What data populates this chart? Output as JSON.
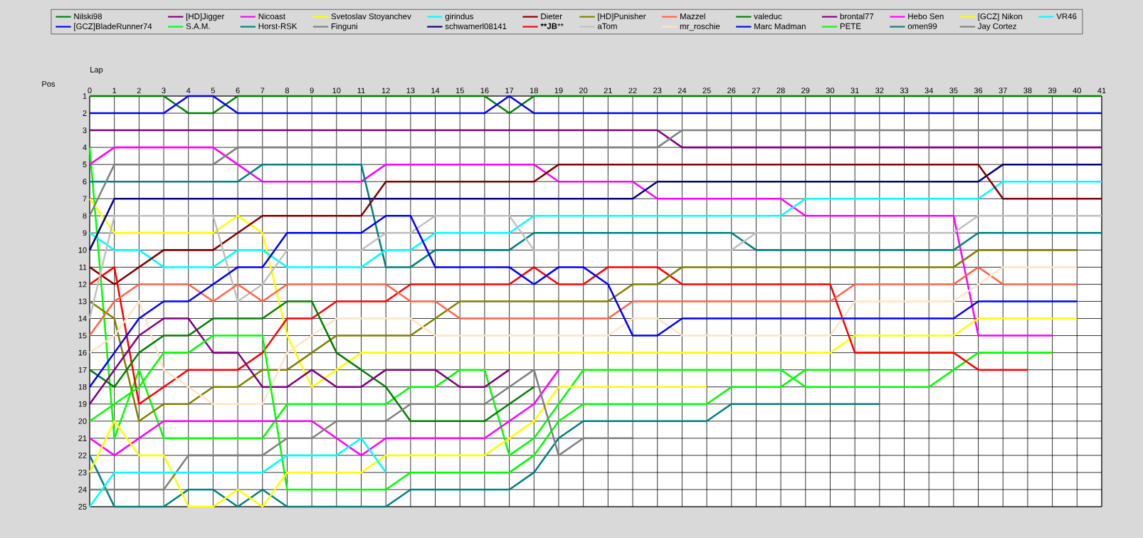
{
  "chart_data": {
    "type": "line",
    "xlabel": "Lap",
    "ylabel": "Pos",
    "x": [
      0,
      1,
      2,
      3,
      4,
      5,
      6,
      7,
      8,
      9,
      10,
      11,
      12,
      13,
      14,
      15,
      16,
      17,
      18,
      19,
      20,
      21,
      22,
      23,
      24,
      25,
      26,
      27,
      28,
      29,
      30,
      31,
      32,
      33,
      34,
      35,
      36,
      37,
      38,
      39,
      40,
      41
    ],
    "xlim": [
      0,
      41
    ],
    "ylim": [
      25,
      1
    ],
    "xticks": [
      0,
      1,
      2,
      3,
      4,
      5,
      6,
      7,
      8,
      9,
      10,
      11,
      12,
      13,
      14,
      15,
      16,
      17,
      18,
      19,
      20,
      21,
      22,
      23,
      24,
      25,
      26,
      27,
      28,
      29,
      30,
      31,
      32,
      33,
      34,
      35,
      36,
      37,
      38,
      39,
      40,
      41
    ],
    "yticks": [
      1,
      2,
      3,
      4,
      5,
      6,
      7,
      8,
      9,
      10,
      11,
      12,
      13,
      14,
      15,
      16,
      17,
      18,
      19,
      20,
      21,
      22,
      23,
      24,
      25
    ],
    "grid": true,
    "legend": "top",
    "marker": "none",
    "series": [
      {
        "name": "Nilski98",
        "color": "#008000",
        "values": [
          1,
          1,
          1,
          1,
          2,
          2,
          1,
          1,
          1,
          1,
          1,
          1,
          1,
          1,
          1,
          1,
          1,
          2,
          1,
          1,
          1,
          1,
          1,
          1,
          1,
          1,
          1,
          1,
          1,
          1,
          1,
          1,
          1,
          1,
          1,
          1,
          1,
          1,
          1,
          1,
          1,
          1
        ]
      },
      {
        "name": "[GCZ]BladeRunner74",
        "color": "#0000ff",
        "values": [
          2,
          2,
          2,
          2,
          1,
          1,
          2,
          2,
          2,
          2,
          2,
          2,
          2,
          2,
          2,
          2,
          2,
          1,
          2,
          2,
          2,
          2,
          2,
          2,
          2,
          2,
          2,
          2,
          2,
          2,
          2,
          2,
          2,
          2,
          2,
          2,
          2,
          2,
          2,
          2,
          2,
          2
        ]
      },
      {
        "name": "[HD]Jigger",
        "color": "#800080",
        "values": [
          3,
          3,
          3,
          3,
          3,
          3,
          3,
          3,
          3,
          3,
          3,
          3,
          3,
          3,
          3,
          3,
          3,
          3,
          3,
          3,
          3,
          3,
          3,
          3,
          4,
          4,
          4,
          4,
          4,
          4,
          4,
          4,
          4,
          4,
          4,
          4,
          4,
          4,
          4,
          4,
          4,
          4
        ]
      },
      {
        "name": "S.A.M.",
        "color": "#00ff00",
        "values": [
          4,
          21,
          17,
          21,
          21,
          21,
          21,
          21,
          19,
          19,
          19,
          19,
          19,
          18,
          18,
          17,
          17,
          22,
          21,
          19,
          17,
          17,
          17,
          17,
          17,
          17,
          17,
          17,
          17,
          18,
          18,
          18,
          18,
          18,
          18,
          17,
          16,
          16,
          16,
          16,
          null,
          null
        ]
      },
      {
        "name": "Nicoast",
        "color": "#ff00ff",
        "values": [
          5,
          4,
          4,
          4,
          4,
          4,
          5,
          6,
          6,
          6,
          6,
          6,
          5,
          5,
          5,
          5,
          5,
          5,
          5,
          6,
          6,
          6,
          6,
          7,
          7,
          7,
          7,
          7,
          7,
          8,
          8,
          8,
          8,
          8,
          8,
          8,
          15,
          15,
          15,
          15,
          null,
          null
        ]
      },
      {
        "name": "Horst-RSK",
        "color": "#008080",
        "values": [
          6,
          6,
          6,
          6,
          6,
          6,
          6,
          5,
          5,
          5,
          5,
          5,
          11,
          11,
          10,
          10,
          10,
          10,
          9,
          9,
          9,
          9,
          9,
          9,
          9,
          9,
          9,
          10,
          10,
          10,
          10,
          10,
          10,
          10,
          10,
          10,
          9,
          9,
          9,
          9,
          9,
          9
        ]
      },
      {
        "name": "Svetoslav Stoyanchev",
        "color": "#ffff00",
        "values": [
          7,
          9,
          9,
          9,
          9,
          9,
          8,
          9,
          15,
          18,
          17,
          16,
          16,
          16,
          16,
          16,
          16,
          16,
          16,
          16,
          16,
          16,
          16,
          16,
          16,
          16,
          16,
          16,
          16,
          16,
          16,
          15,
          15,
          15,
          15,
          15,
          14,
          14,
          14,
          14,
          14,
          null
        ]
      },
      {
        "name": "Finguni",
        "color": "#808080",
        "values": [
          8,
          5,
          5,
          5,
          5,
          5,
          4,
          4,
          4,
          4,
          4,
          4,
          4,
          4,
          4,
          4,
          4,
          4,
          4,
          4,
          4,
          4,
          4,
          4,
          3,
          3,
          3,
          3,
          3,
          3,
          3,
          3,
          3,
          3,
          3,
          3,
          3,
          3,
          3,
          3,
          3,
          3
        ]
      },
      {
        "name": "girindus",
        "color": "#00ffff",
        "values": [
          9,
          10,
          10,
          11,
          11,
          11,
          10,
          10,
          11,
          11,
          11,
          11,
          10,
          10,
          9,
          9,
          9,
          9,
          8,
          8,
          8,
          8,
          8,
          8,
          8,
          8,
          8,
          8,
          8,
          7,
          7,
          7,
          7,
          7,
          7,
          7,
          7,
          6,
          6,
          6,
          6,
          6
        ]
      },
      {
        "name": "schwamerl08141",
        "color": "#000080",
        "values": [
          10,
          7,
          7,
          7,
          7,
          7,
          7,
          7,
          7,
          7,
          7,
          7,
          7,
          7,
          7,
          7,
          7,
          7,
          7,
          7,
          7,
          7,
          7,
          6,
          6,
          6,
          6,
          6,
          6,
          6,
          6,
          6,
          6,
          6,
          6,
          6,
          6,
          5,
          5,
          5,
          5,
          5
        ]
      },
      {
        "name": "Dieter",
        "color": "#800000",
        "values": [
          11,
          12,
          11,
          10,
          10,
          10,
          9,
          8,
          8,
          8,
          8,
          8,
          6,
          6,
          6,
          6,
          6,
          6,
          6,
          5,
          5,
          5,
          5,
          5,
          5,
          5,
          5,
          5,
          5,
          5,
          5,
          5,
          5,
          5,
          5,
          5,
          5,
          7,
          7,
          7,
          7,
          7
        ]
      },
      {
        "name": "****JB****",
        "color": "#ff0000",
        "values": [
          12,
          11,
          19,
          18,
          17,
          17,
          17,
          16,
          14,
          14,
          13,
          13,
          13,
          12,
          12,
          12,
          12,
          12,
          11,
          12,
          12,
          11,
          11,
          11,
          12,
          12,
          12,
          12,
          12,
          12,
          12,
          16,
          16,
          16,
          16,
          16,
          17,
          17,
          17,
          null,
          null,
          null
        ]
      },
      {
        "name": "[HD]Punisher",
        "color": "#808000",
        "values": [
          13,
          14,
          20,
          19,
          19,
          18,
          18,
          17,
          17,
          16,
          15,
          15,
          15,
          15,
          14,
          13,
          13,
          13,
          13,
          13,
          13,
          13,
          12,
          12,
          11,
          11,
          11,
          11,
          11,
          11,
          11,
          11,
          11,
          11,
          11,
          11,
          10,
          10,
          10,
          10,
          10,
          null
        ]
      },
      {
        "name": "aTom",
        "color": "#c0c0c0",
        "values": [
          14,
          8,
          8,
          8,
          8,
          8,
          13,
          12,
          10,
          10,
          10,
          10,
          9,
          9,
          8,
          8,
          8,
          8,
          10,
          10,
          10,
          10,
          10,
          10,
          10,
          10,
          10,
          9,
          9,
          9,
          9,
          9,
          9,
          9,
          9,
          9,
          8,
          8,
          8,
          8,
          8,
          8
        ]
      },
      {
        "name": "Mazzel",
        "color": "#ff6347",
        "values": [
          15,
          13,
          12,
          12,
          12,
          13,
          12,
          13,
          12,
          12,
          12,
          12,
          12,
          13,
          13,
          14,
          14,
          14,
          14,
          14,
          14,
          14,
          13,
          13,
          13,
          13,
          13,
          13,
          13,
          13,
          13,
          12,
          12,
          12,
          12,
          12,
          11,
          12,
          12,
          12,
          12,
          null
        ]
      },
      {
        "name": "mr_roschie",
        "color": "#ffe4c4",
        "values": [
          16,
          15,
          13,
          17,
          18,
          19,
          19,
          19,
          16,
          15,
          14,
          14,
          14,
          14,
          15,
          15,
          15,
          15,
          15,
          15,
          15,
          15,
          14,
          14,
          15,
          15,
          15,
          15,
          15,
          15,
          15,
          13,
          13,
          13,
          13,
          13,
          12,
          11,
          11,
          11,
          11,
          null
        ]
      },
      {
        "name": "valeduc",
        "color": "#008000",
        "values": [
          17,
          18,
          16,
          15,
          15,
          14,
          14,
          14,
          13,
          13,
          16,
          17,
          18,
          20,
          20,
          20,
          20,
          19,
          18,
          null,
          null,
          null,
          null,
          null,
          null,
          null,
          null,
          null,
          null,
          null,
          null,
          null,
          null,
          null,
          null,
          null,
          null,
          null,
          null,
          null,
          null,
          null
        ]
      },
      {
        "name": "Marc Madman",
        "color": "#0000ff",
        "values": [
          18,
          16,
          14,
          13,
          13,
          12,
          11,
          11,
          9,
          9,
          9,
          9,
          8,
          8,
          11,
          11,
          11,
          11,
          12,
          11,
          11,
          12,
          15,
          15,
          14,
          14,
          14,
          14,
          14,
          14,
          14,
          14,
          14,
          14,
          14,
          14,
          13,
          13,
          13,
          13,
          13,
          null
        ]
      },
      {
        "name": "brontal77",
        "color": "#800080",
        "values": [
          19,
          17,
          15,
          14,
          14,
          16,
          16,
          18,
          18,
          17,
          18,
          18,
          17,
          17,
          17,
          18,
          18,
          17,
          null,
          null,
          null,
          null,
          null,
          null,
          null,
          null,
          null,
          null,
          null,
          null,
          null,
          null,
          null,
          null,
          null,
          null,
          null,
          null,
          null,
          null,
          null,
          null
        ]
      },
      {
        "name": "PETE",
        "color": "#00ff00",
        "values": [
          20,
          19,
          18,
          16,
          16,
          15,
          15,
          15,
          24,
          24,
          24,
          24,
          24,
          23,
          23,
          23,
          23,
          23,
          22,
          20,
          19,
          19,
          19,
          19,
          19,
          19,
          18,
          18,
          18,
          17,
          17,
          17,
          17,
          17,
          17,
          null,
          null,
          null,
          null,
          null,
          null,
          null
        ]
      },
      {
        "name": "Hebo Sen",
        "color": "#ff00ff",
        "values": [
          21,
          22,
          21,
          20,
          20,
          20,
          20,
          20,
          20,
          20,
          21,
          22,
          21,
          21,
          21,
          21,
          21,
          20,
          19,
          17,
          null,
          null,
          null,
          null,
          null,
          null,
          null,
          null,
          null,
          null,
          null,
          null,
          null,
          null,
          null,
          null,
          null,
          null,
          null,
          null,
          null,
          null
        ]
      },
      {
        "name": "omen99",
        "color": "#008080",
        "values": [
          22,
          25,
          25,
          25,
          24,
          24,
          25,
          24,
          25,
          25,
          25,
          25,
          25,
          24,
          24,
          24,
          24,
          24,
          23,
          21,
          20,
          20,
          20,
          20,
          20,
          20,
          19,
          19,
          19,
          19,
          19,
          19,
          19,
          null,
          null,
          null,
          null,
          null,
          null,
          null,
          null,
          null
        ]
      },
      {
        "name": "[GCZ] Nikon",
        "color": "#ffff00",
        "values": [
          23,
          20,
          22,
          22,
          25,
          25,
          24,
          25,
          23,
          23,
          23,
          23,
          22,
          22,
          22,
          22,
          22,
          21,
          20,
          18,
          18,
          18,
          18,
          18,
          18,
          18,
          null,
          null,
          null,
          null,
          null,
          null,
          null,
          null,
          null,
          null,
          null,
          null,
          null,
          null,
          null,
          null
        ]
      },
      {
        "name": "Jay Cortez",
        "color": "#808080",
        "values": [
          24,
          24,
          24,
          24,
          22,
          22,
          22,
          22,
          21,
          21,
          20,
          20,
          20,
          19,
          19,
          19,
          19,
          18,
          17,
          22,
          21,
          21,
          21,
          null,
          null,
          null,
          null,
          null,
          null,
          null,
          null,
          null,
          null,
          null,
          null,
          null,
          null,
          null,
          null,
          null,
          null,
          null
        ]
      },
      {
        "name": "VR46",
        "color": "#00ffff",
        "values": [
          25,
          23,
          23,
          23,
          23,
          23,
          23,
          23,
          22,
          22,
          22,
          21,
          23,
          null,
          null,
          null,
          null,
          null,
          null,
          null,
          null,
          null,
          null,
          null,
          null,
          null,
          null,
          null,
          null,
          null,
          null,
          null,
          null,
          null,
          null,
          null,
          null,
          null,
          null,
          null,
          null,
          null
        ]
      }
    ]
  }
}
